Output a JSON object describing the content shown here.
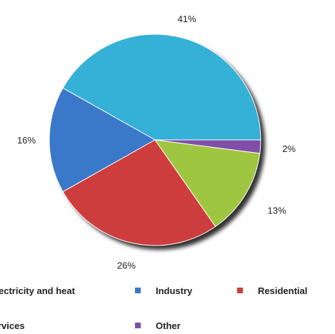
{
  "chart_data": {
    "type": "pie",
    "title": "",
    "start_angle_deg": 0,
    "direction": "counterclockwise-from-right",
    "slices": [
      {
        "label": "Electricity and heat",
        "value": 41,
        "value_label": "41%",
        "color": "#35b0d6"
      },
      {
        "label": "Industry",
        "value": 16,
        "value_label": "16%",
        "color": "#3a78c9"
      },
      {
        "label": "Residential",
        "value": 26,
        "value_label": "26%",
        "color": "#ce3d3d"
      },
      {
        "label": "Services",
        "value": 13,
        "value_label": "13%",
        "color": "#9fc640"
      },
      {
        "label": "Other",
        "value": 2,
        "value_label": "2%",
        "color": "#7f4fa8"
      }
    ],
    "legend": {
      "position": "bottom",
      "visible_texts": [
        "ectricity and heat",
        "Industry",
        "Residential",
        "rvices",
        "Other"
      ]
    }
  }
}
